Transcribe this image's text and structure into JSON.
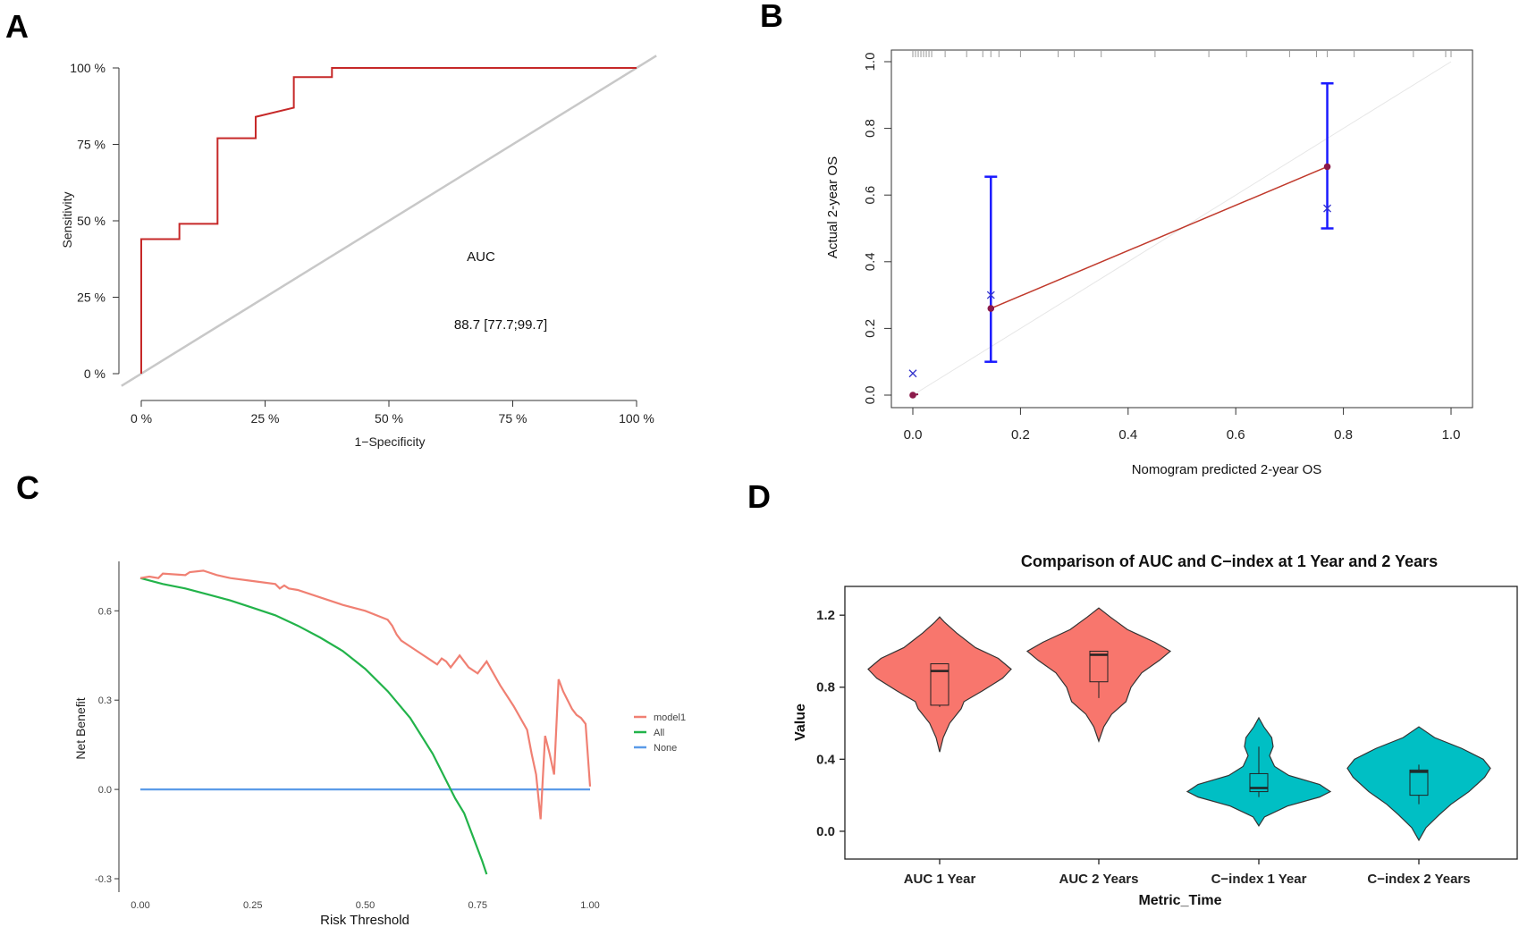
{
  "panels": {
    "a": "A",
    "b": "B",
    "c": "C",
    "d": "D"
  },
  "chart_data": [
    {
      "id": "A",
      "type": "line",
      "title": "",
      "xlabel": "1−Specificity",
      "ylabel": "Sensitivity",
      "xlim": [
        0,
        1
      ],
      "ylim": [
        0,
        1
      ],
      "x_ticks": [
        "0 %",
        "25 %",
        "50 %",
        "75 %",
        "100 %"
      ],
      "y_ticks": [
        "0 %",
        "25 %",
        "50 %",
        "75 %",
        "100 %"
      ],
      "annotation_label": "AUC",
      "annotation_value": "88.7 [77.7;99.7]",
      "colors": {
        "roc": "#c62828",
        "diagonal": "#c8c8c8"
      },
      "series": [
        {
          "name": "ROC",
          "x": [
            0,
            0,
            0.077,
            0.077,
            0.154,
            0.154,
            0.231,
            0.231,
            0.308,
            0.308,
            0.385,
            0.385,
            1.0
          ],
          "y": [
            0,
            0.44,
            0.44,
            0.49,
            0.49,
            0.77,
            0.77,
            0.84,
            0.87,
            0.97,
            0.97,
            1.0,
            1.0
          ]
        }
      ]
    },
    {
      "id": "B",
      "type": "scatter",
      "xlabel": "Nomogram predicted 2-year OS",
      "ylabel": "Actual 2-year OS",
      "xlim": [
        0,
        1
      ],
      "ylim": [
        0,
        1
      ],
      "x_ticks": [
        "0.0",
        "0.2",
        "0.4",
        "0.6",
        "0.8",
        "1.0"
      ],
      "y_ticks": [
        "0.0",
        "0.2",
        "0.4",
        "0.6",
        "0.8",
        "1.0"
      ],
      "colors": {
        "points": "#8b1a4a",
        "line": "#c0392b",
        "errorbar": "#1a1aff",
        "cross": "#3333cc"
      },
      "points": [
        {
          "x": 0.0,
          "y": 0.0,
          "lo": 0.0,
          "hi": 0.0,
          "km": 0.065
        },
        {
          "x": 0.145,
          "y": 0.26,
          "lo": 0.1,
          "hi": 0.655,
          "km": 0.3
        },
        {
          "x": 0.77,
          "y": 0.685,
          "lo": 0.5,
          "hi": 0.935,
          "km": 0.56
        }
      ]
    },
    {
      "id": "C",
      "type": "line",
      "xlabel": "Risk Threshold",
      "ylabel": "Net Benefit",
      "xlim": [
        0,
        1
      ],
      "ylim": [
        -0.3,
        0.7
      ],
      "x_ticks": [
        "0.00",
        "0.25",
        "0.50",
        "0.75",
        "1.00"
      ],
      "y_ticks": [
        "-0.3",
        "0.0",
        "0.3",
        "0.6"
      ],
      "legend": [
        "model1",
        "All",
        "None"
      ],
      "colors": {
        "model1": "#f08073",
        "All": "#22b34a",
        "None": "#5b9be8"
      },
      "series": [
        {
          "name": "model1",
          "x": [
            0,
            0.02,
            0.04,
            0.05,
            0.1,
            0.11,
            0.14,
            0.15,
            0.17,
            0.2,
            0.25,
            0.3,
            0.31,
            0.32,
            0.33,
            0.35,
            0.4,
            0.45,
            0.5,
            0.55,
            0.56,
            0.57,
            0.58,
            0.6,
            0.63,
            0.64,
            0.65,
            0.66,
            0.67,
            0.68,
            0.69,
            0.7,
            0.71,
            0.72,
            0.73,
            0.74,
            0.75,
            0.76,
            0.77,
            0.8,
            0.83,
            0.86,
            0.87,
            0.88,
            0.89,
            0.9,
            0.91,
            0.92,
            0.93,
            0.94,
            0.95,
            0.96,
            0.97,
            0.98,
            0.99,
            1.0
          ],
          "y": [
            0.71,
            0.715,
            0.71,
            0.725,
            0.72,
            0.73,
            0.735,
            0.73,
            0.72,
            0.71,
            0.7,
            0.69,
            0.675,
            0.685,
            0.675,
            0.67,
            0.645,
            0.62,
            0.6,
            0.57,
            0.55,
            0.52,
            0.5,
            0.48,
            0.45,
            0.44,
            0.43,
            0.42,
            0.44,
            0.43,
            0.41,
            0.43,
            0.45,
            0.43,
            0.41,
            0.4,
            0.39,
            0.41,
            0.43,
            0.35,
            0.28,
            0.2,
            0.12,
            0.05,
            -0.1,
            0.18,
            0.12,
            0.05,
            0.37,
            0.33,
            0.3,
            0.27,
            0.25,
            0.24,
            0.22,
            0.01
          ]
        },
        {
          "name": "All",
          "x": [
            0,
            0.05,
            0.1,
            0.15,
            0.2,
            0.25,
            0.3,
            0.35,
            0.4,
            0.45,
            0.5,
            0.55,
            0.6,
            0.65,
            0.7,
            0.72,
            0.74,
            0.76,
            0.77
          ],
          "y": [
            0.71,
            0.69,
            0.675,
            0.655,
            0.635,
            0.61,
            0.585,
            0.55,
            0.51,
            0.465,
            0.405,
            0.33,
            0.24,
            0.12,
            -0.03,
            -0.08,
            -0.16,
            -0.24,
            -0.285
          ]
        },
        {
          "name": "None",
          "x": [
            0,
            1.0
          ],
          "y": [
            0,
            0
          ]
        }
      ]
    },
    {
      "id": "D",
      "type": "violin",
      "title": "Comparison of AUC and C−index at 1 Year and 2 Years",
      "xlabel": "Metric_Time",
      "ylabel": "Value",
      "ylim": [
        -0.07,
        1.32
      ],
      "y_ticks": [
        "0.0",
        "0.4",
        "0.8",
        "1.2"
      ],
      "categories": [
        "AUC 1 Year",
        "AUC 2 Years",
        "C−index 1 Year",
        "C−index 2 Years"
      ],
      "colors": {
        "AUC": "#f8766d",
        "C-index": "#00bfc4"
      },
      "groups": [
        {
          "name": "AUC 1 Year",
          "color_key": "AUC",
          "min": 0.44,
          "max": 1.19,
          "q1": 0.7,
          "median": 0.89,
          "q3": 0.93,
          "wlo": 0.69,
          "whi": 0.93,
          "profile": [
            [
              0.44,
              0
            ],
            [
              0.52,
              0.05
            ],
            [
              0.6,
              0.14
            ],
            [
              0.68,
              0.3
            ],
            [
              0.72,
              0.34
            ],
            [
              0.78,
              0.6
            ],
            [
              0.85,
              0.88
            ],
            [
              0.9,
              1.0
            ],
            [
              0.96,
              0.82
            ],
            [
              1.02,
              0.5
            ],
            [
              1.1,
              0.24
            ],
            [
              1.16,
              0.07
            ],
            [
              1.19,
              0
            ]
          ]
        },
        {
          "name": "AUC 2 Years",
          "color_key": "AUC",
          "min": 0.5,
          "max": 1.24,
          "q1": 0.83,
          "median": 0.98,
          "q3": 1.0,
          "wlo": 0.74,
          "whi": 1.0,
          "profile": [
            [
              0.5,
              0
            ],
            [
              0.58,
              0.07
            ],
            [
              0.65,
              0.18
            ],
            [
              0.72,
              0.38
            ],
            [
              0.8,
              0.45
            ],
            [
              0.88,
              0.6
            ],
            [
              0.95,
              0.85
            ],
            [
              1.0,
              1.0
            ],
            [
              1.05,
              0.78
            ],
            [
              1.12,
              0.4
            ],
            [
              1.19,
              0.16
            ],
            [
              1.24,
              0
            ]
          ]
        },
        {
          "name": "C−index 1 Year",
          "color_key": "C-index",
          "min": 0.03,
          "max": 0.63,
          "q1": 0.22,
          "median": 0.24,
          "q3": 0.32,
          "wlo": 0.19,
          "whi": 0.47,
          "profile": [
            [
              0.03,
              0
            ],
            [
              0.08,
              0.08
            ],
            [
              0.14,
              0.4
            ],
            [
              0.19,
              0.85
            ],
            [
              0.22,
              1.0
            ],
            [
              0.26,
              0.85
            ],
            [
              0.31,
              0.42
            ],
            [
              0.36,
              0.22
            ],
            [
              0.42,
              0.15
            ],
            [
              0.47,
              0.2
            ],
            [
              0.52,
              0.18
            ],
            [
              0.58,
              0.07
            ],
            [
              0.63,
              0
            ]
          ]
        },
        {
          "name": "C−index 2 Years",
          "color_key": "C-index",
          "min": -0.05,
          "max": 0.58,
          "q1": 0.2,
          "median": 0.33,
          "q3": 0.34,
          "wlo": 0.15,
          "whi": 0.37,
          "profile": [
            [
              -0.05,
              0
            ],
            [
              0.02,
              0.1
            ],
            [
              0.09,
              0.28
            ],
            [
              0.15,
              0.45
            ],
            [
              0.22,
              0.7
            ],
            [
              0.3,
              0.92
            ],
            [
              0.35,
              1.0
            ],
            [
              0.4,
              0.9
            ],
            [
              0.46,
              0.6
            ],
            [
              0.52,
              0.22
            ],
            [
              0.58,
              0
            ]
          ]
        }
      ]
    }
  ]
}
